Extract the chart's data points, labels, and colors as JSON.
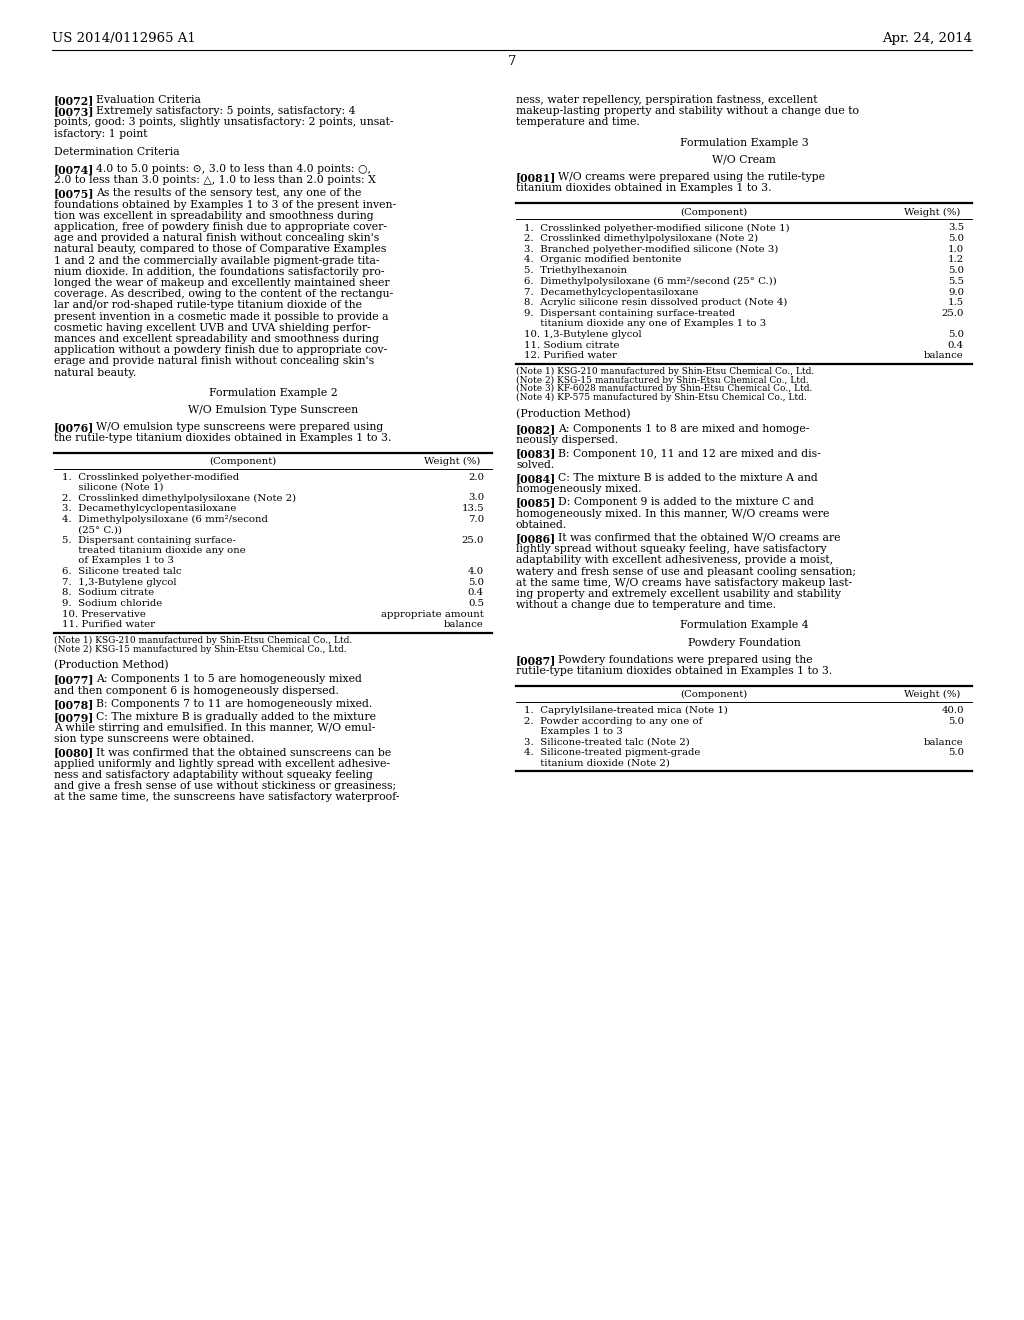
{
  "bg_color": "#ffffff",
  "header_left": "US 2014/0112965 A1",
  "header_right": "Apr. 24, 2014",
  "page_number": "7",
  "table_left_1": {
    "header": [
      "(Component)",
      "Weight (%)"
    ],
    "rows": [
      [
        "1.  Crosslinked polyether-modified\n     silicone (Note 1)",
        "2.0"
      ],
      [
        "2.  Crosslinked dimethylpolysiloxane (Note 2)",
        "3.0"
      ],
      [
        "3.  Decamethylcyclopentasiloxane",
        "13.5"
      ],
      [
        "4.  Dimethylpolysiloxane (6 mm²/second\n     (25° C.))",
        "7.0"
      ],
      [
        "5.  Dispersant containing surface-\n     treated titanium dioxide any one\n     of Examples 1 to 3",
        "25.0"
      ],
      [
        "6.  Silicone treated talc",
        "4.0"
      ],
      [
        "7.  1,3-Butylene glycol",
        "5.0"
      ],
      [
        "8.  Sodium citrate",
        "0.4"
      ],
      [
        "9.  Sodium chloride",
        "0.5"
      ],
      [
        "10. Preservative",
        "appropriate amount"
      ],
      [
        "11. Purified water",
        "balance"
      ]
    ],
    "notes": [
      "(Note 1) KSG-210 manufactured by Shin-Etsu Chemical Co., Ltd.",
      "(Note 2) KSG-15 manufactured by Shin-Etsu Chemical Co., Ltd."
    ]
  },
  "table_right_1": {
    "header": [
      "(Component)",
      "Weight (%)"
    ],
    "rows": [
      [
        "1.  Crosslinked polyether-modified silicone (Note 1)",
        "3.5"
      ],
      [
        "2.  Crosslinked dimethylpolysiloxane (Note 2)",
        "5.0"
      ],
      [
        "3.  Branched polyether-modified silicone (Note 3)",
        "1.0"
      ],
      [
        "4.  Organic modified bentonite",
        "1.2"
      ],
      [
        "5.  Triethylhexanoin",
        "5.0"
      ],
      [
        "6.  Dimethylpolysiloxane (6 mm²/second (25° C.))",
        "5.5"
      ],
      [
        "7.  Decamethylcyclopentasiloxane",
        "9.0"
      ],
      [
        "8.  Acrylic silicone resin dissolved product (Note 4)",
        "1.5"
      ],
      [
        "9.  Dispersant containing surface-treated\n     titanium dioxide any one of Examples 1 to 3",
        "25.0"
      ],
      [
        "10. 1,3-Butylene glycol",
        "5.0"
      ],
      [
        "11. Sodium citrate",
        "0.4"
      ],
      [
        "12. Purified water",
        "balance"
      ]
    ],
    "notes": [
      "(Note 1) KSG-210 manufactured by Shin-Etsu Chemical Co., Ltd.",
      "(Note 2) KSG-15 manufactured by Shin-Etsu Chemical Co., Ltd.",
      "(Note 3) KF-6028 manufactured by Shin-Etsu Chemical Co., Ltd.",
      "(Note 4) KP-575 manufactured by Shin-Etsu Chemical Co., Ltd."
    ]
  },
  "table_right_2": {
    "header": [
      "(Component)",
      "Weight (%)"
    ],
    "rows": [
      [
        "1.  Caprylylsilane-treated mica (Note 1)",
        "40.0"
      ],
      [
        "2.  Powder according to any one of\n     Examples 1 to 3",
        "5.0"
      ],
      [
        "3.  Silicone-treated talc (Note 2)",
        "balance"
      ],
      [
        "4.  Silicone-treated pigment-grade\n     titanium dioxide (Note 2)",
        "5.0"
      ]
    ],
    "notes": []
  }
}
